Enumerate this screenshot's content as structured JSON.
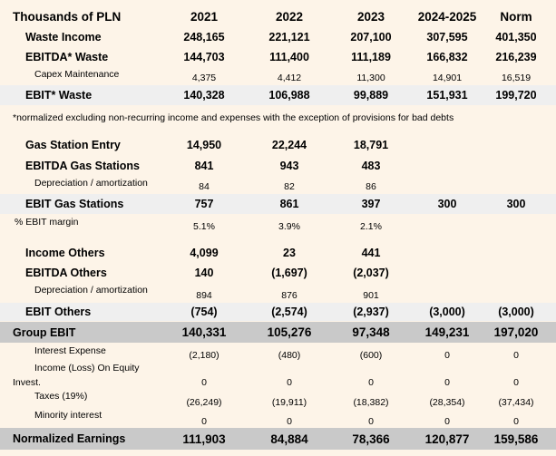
{
  "header": {
    "label": "Thousands of PLN",
    "columns": [
      "2021",
      "2022",
      "2023",
      "2024-2025",
      "Norm"
    ]
  },
  "waste": {
    "income": {
      "label": "Waste Income",
      "values": [
        "248,165",
        "221,121",
        "207,100",
        "307,595",
        "401,350"
      ]
    },
    "ebitda": {
      "label": "EBITDA* Waste",
      "values": [
        "144,703",
        "111,400",
        "111,189",
        "166,832",
        "216,239"
      ]
    },
    "capex": {
      "label": "Capex Maintenance",
      "values": [
        "4,375",
        "4,412",
        "11,300",
        "14,901",
        "16,519"
      ]
    },
    "ebit": {
      "label": "EBIT* Waste",
      "values": [
        "140,328",
        "106,988",
        "99,889",
        "151,931",
        "199,720"
      ]
    }
  },
  "note": "*normalized excluding non-recurring income and expenses with the exception of provisions for bad debts",
  "gas": {
    "entry": {
      "label": "Gas Station Entry",
      "values": [
        "14,950",
        "22,244",
        "18,791",
        "",
        ""
      ]
    },
    "ebitda": {
      "label": "EBITDA Gas Stations",
      "values": [
        "841",
        "943",
        "483",
        "",
        ""
      ]
    },
    "depr": {
      "label": "Depreciation / amortization",
      "values": [
        "84",
        "82",
        "86",
        "",
        ""
      ]
    },
    "ebit": {
      "label": "EBIT Gas Stations",
      "values": [
        "757",
        "861",
        "397",
        "300",
        "300"
      ]
    },
    "margin": {
      "label": "% EBIT margin",
      "values": [
        "5.1%",
        "3.9%",
        "2.1%",
        "",
        ""
      ]
    }
  },
  "others": {
    "income": {
      "label": "Income Others",
      "values": [
        "4,099",
        "23",
        "441",
        "",
        ""
      ]
    },
    "ebitda": {
      "label": "EBITDA Others",
      "values": [
        "140",
        "(1,697)",
        "(2,037)",
        "",
        ""
      ]
    },
    "depr": {
      "label": "Depreciation / amortization",
      "values": [
        "894",
        "876",
        "901",
        "",
        ""
      ]
    },
    "ebit": {
      "label": "EBIT Others",
      "values": [
        "(754)",
        "(2,574)",
        "(2,937)",
        "(3,000)",
        "(3,000)"
      ]
    }
  },
  "group_ebit": {
    "label": "Group EBIT",
    "values": [
      "140,331",
      "105,276",
      "97,348",
      "149,231",
      "197,020"
    ]
  },
  "interest": {
    "label": "Interest Expense",
    "values": [
      "(2,180)",
      "(480)",
      "(600)",
      "0",
      "0"
    ]
  },
  "equity": {
    "label1": "Income (Loss) On Equity",
    "label2": "Invest.",
    "values": [
      "0",
      "0",
      "0",
      "0",
      "0"
    ]
  },
  "taxes": {
    "label": "Taxes (19%)",
    "values": [
      "(26,249)",
      "(19,911)",
      "(18,382)",
      "(28,354)",
      "(37,434)"
    ]
  },
  "minority": {
    "label": "Minority interest",
    "values": [
      "0",
      "0",
      "0",
      "0",
      "0"
    ]
  },
  "normalized": {
    "label": "Normalized Earnings",
    "values": [
      "111,903",
      "84,884",
      "78,366",
      "120,877",
      "159,586"
    ]
  }
}
